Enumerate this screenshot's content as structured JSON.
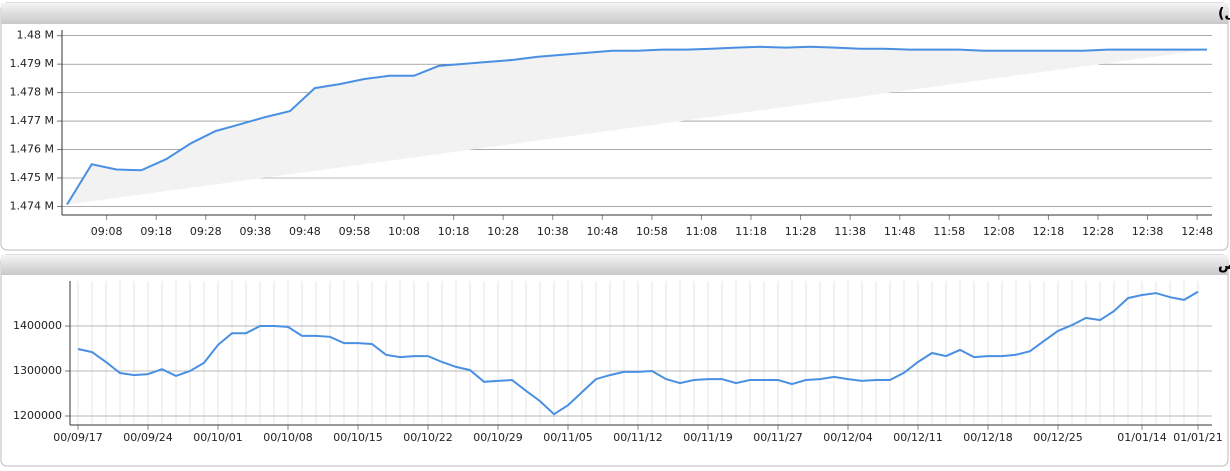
{
  "chart_data": [
    {
      "type": "line",
      "title": "شاخص کل (آخرین روز معاملاتی)",
      "color": "#4a90e2",
      "area": true,
      "grid": true,
      "x": [
        "09:00",
        "09:05",
        "09:10",
        "09:15",
        "09:20",
        "09:25",
        "09:30",
        "09:35",
        "09:40",
        "09:45",
        "09:50",
        "09:55",
        "10:00",
        "10:05",
        "10:10",
        "10:15",
        "10:20",
        "10:25",
        "10:30",
        "10:35",
        "10:40",
        "10:45",
        "10:50",
        "10:55",
        "11:00",
        "11:05",
        "11:10",
        "11:15",
        "11:20",
        "11:25",
        "11:30",
        "11:35",
        "11:40",
        "11:45",
        "11:50",
        "11:55",
        "12:00",
        "12:05",
        "12:10",
        "12:15",
        "12:20",
        "12:25",
        "12:30",
        "12:35",
        "12:40",
        "12:45",
        "12:50"
      ],
      "values": [
        1474070,
        1475480,
        1475300,
        1475270,
        1475660,
        1476220,
        1476650,
        1476890,
        1477140,
        1477350,
        1478160,
        1478300,
        1478480,
        1478590,
        1478590,
        1478940,
        1479010,
        1479080,
        1479150,
        1479260,
        1479330,
        1479400,
        1479470,
        1479470,
        1479510,
        1479510,
        1479540,
        1479580,
        1479610,
        1479580,
        1479610,
        1479580,
        1479540,
        1479540,
        1479510,
        1479510,
        1479510,
        1479470,
        1479470,
        1479470,
        1479470,
        1479470,
        1479510,
        1479510,
        1479510,
        1479510,
        1479510
      ],
      "xlim": [
        "08:59",
        "12:51"
      ],
      "xticks": [
        "09:08",
        "09:18",
        "09:28",
        "09:38",
        "09:48",
        "09:58",
        "10:08",
        "10:18",
        "10:28",
        "10:38",
        "10:48",
        "10:58",
        "11:08",
        "11:18",
        "11:28",
        "11:38",
        "11:48",
        "11:58",
        "12:08",
        "12:18",
        "12:28",
        "12:38",
        "12:48"
      ],
      "ylim": [
        1473700,
        1480200
      ],
      "yticks": [
        {
          "value": 1474000,
          "label": "1.474 M"
        },
        {
          "value": 1475000,
          "label": "1.475 M"
        },
        {
          "value": 1476000,
          "label": "1.476 M"
        },
        {
          "value": 1477000,
          "label": "1.477 M"
        },
        {
          "value": 1478000,
          "label": "1.478 M"
        },
        {
          "value": 1479000,
          "label": "1.479 M"
        },
        {
          "value": 1480000,
          "label": "1.48 M"
        }
      ]
    },
    {
      "type": "line",
      "title": "نمودار شاخص",
      "color": "#4a90e2",
      "area": false,
      "grid": true,
      "categories": [
        "00/09/17",
        null,
        null,
        null,
        null,
        "00/09/24",
        null,
        null,
        null,
        null,
        "00/10/01",
        null,
        null,
        null,
        null,
        "00/10/08",
        null,
        null,
        null,
        null,
        "00/10/15",
        null,
        null,
        null,
        null,
        "00/10/22",
        null,
        null,
        null,
        null,
        "00/10/29",
        null,
        null,
        null,
        null,
        "00/11/05",
        null,
        null,
        null,
        null,
        "00/11/12",
        null,
        null,
        null,
        null,
        "00/11/19",
        null,
        null,
        null,
        null,
        "00/11/27",
        null,
        null,
        null,
        null,
        "00/12/04",
        null,
        null,
        null,
        null,
        "00/12/11",
        null,
        null,
        null,
        null,
        "00/12/18",
        null,
        null,
        null,
        null,
        "00/12/25",
        null,
        null,
        null,
        null,
        null,
        "01/01/14",
        null,
        null,
        null,
        "01/01/21"
      ],
      "values": [
        1348900,
        1342000,
        1320000,
        1295500,
        1291000,
        1293000,
        1304000,
        1289000,
        1300000,
        1318000,
        1358000,
        1384000,
        1384000,
        1400000,
        1400000,
        1398000,
        1378000,
        1378000,
        1376000,
        1362000,
        1362000,
        1360000,
        1336000,
        1331000,
        1333000,
        1333000,
        1320000,
        1309000,
        1302000,
        1276000,
        1278000,
        1280000,
        1256000,
        1233000,
        1204000,
        1224000,
        1253000,
        1282000,
        1291000,
        1298000,
        1298000,
        1300000,
        1282000,
        1273000,
        1280000,
        1282000,
        1282000,
        1273000,
        1280000,
        1280000,
        1280000,
        1271000,
        1280000,
        1282000,
        1287000,
        1282000,
        1278000,
        1280000,
        1280000,
        1296000,
        1320000,
        1340000,
        1333000,
        1347000,
        1331000,
        1333000,
        1333000,
        1336000,
        1344000,
        1367000,
        1389000,
        1402000,
        1418000,
        1413000,
        1433000,
        1462000,
        1469000,
        1473000,
        1464000,
        1458000,
        1476000
      ],
      "ylim": [
        1180000,
        1500000
      ],
      "yticks": [
        1200000,
        1300000,
        1400000
      ]
    }
  ]
}
